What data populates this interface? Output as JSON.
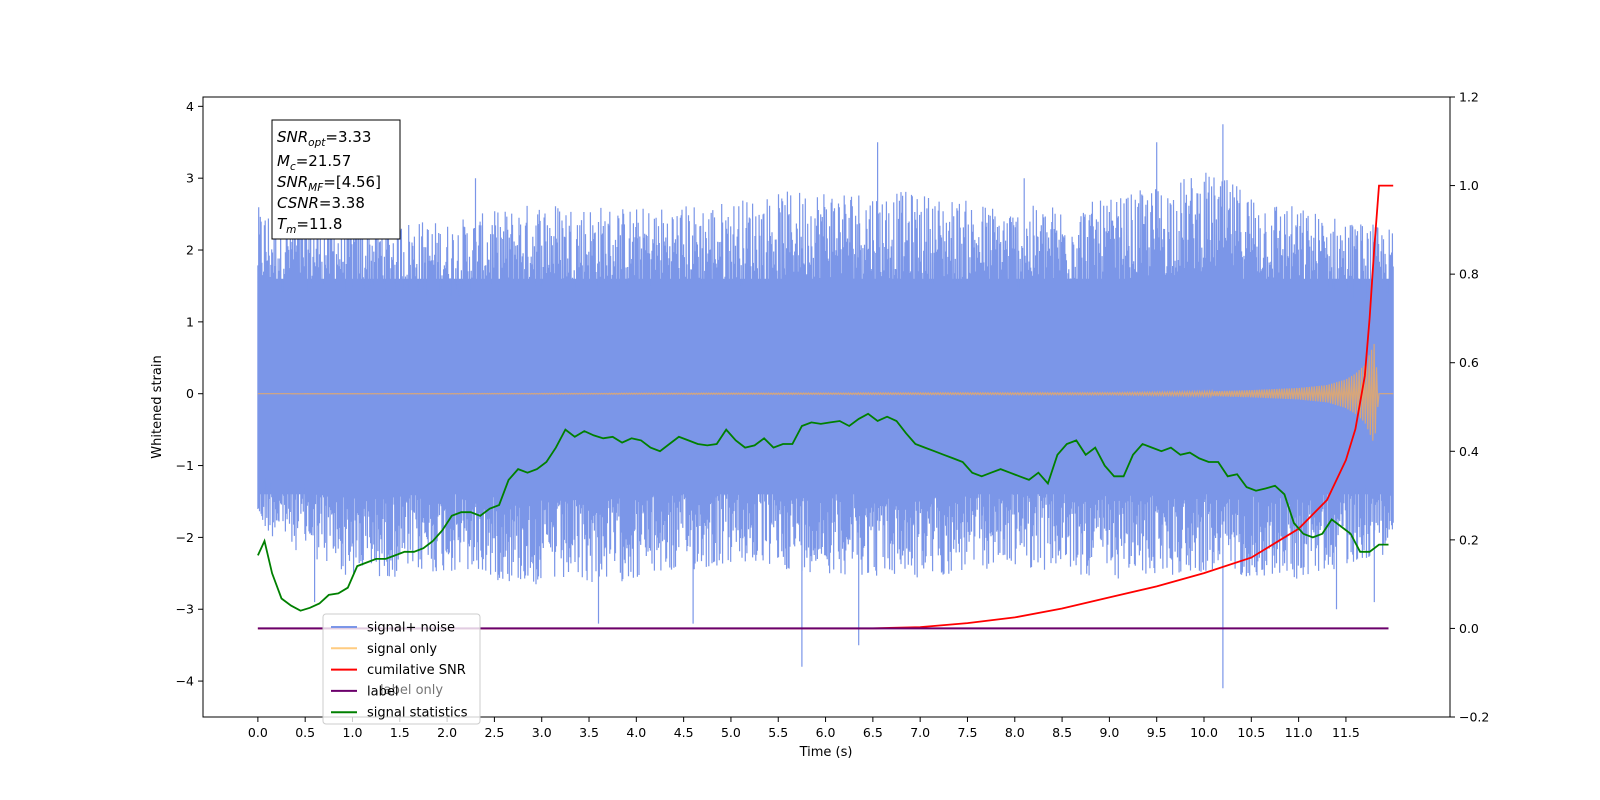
{
  "chart_data": {
    "type": "line",
    "xlabel": "Time (s)",
    "ylabel": "Whitened strain",
    "xlim": [
      -0.58,
      12.6
    ],
    "ylim": [
      -4.5,
      4.13
    ],
    "y2lim": [
      -0.2,
      1.2
    ],
    "x_ticks": [
      "0.0",
      "0.5",
      "1.0",
      "1.5",
      "2.0",
      "2.5",
      "3.0",
      "3.5",
      "4.0",
      "4.5",
      "5.0",
      "5.5",
      "6.0",
      "6.5",
      "7.0",
      "7.5",
      "8.0",
      "8.5",
      "9.0",
      "9.5",
      "10.0",
      "10.5",
      "11.0",
      "11.5"
    ],
    "y_ticks": [
      "4",
      "3",
      "2",
      "1",
      "0",
      "−1",
      "−2",
      "−3",
      "−4"
    ],
    "y2_ticks": [
      "1.2",
      "1.0",
      "0.8",
      "0.6",
      "0.4",
      "0.2",
      "0.0",
      "−0.2"
    ],
    "legend_position": "lower-left",
    "annotation": {
      "lines": [
        {
          "sym": "SNR",
          "sub": "opt",
          "value": "=3.33"
        },
        {
          "sym": "M",
          "sub": "c",
          "value": "=21.57"
        },
        {
          "sym": "SNR",
          "sub": "MF",
          "value": "=[4.56]"
        },
        {
          "sym": "CSNR",
          "sub": "",
          "value": "=3.38"
        },
        {
          "sym": "T",
          "sub": "m",
          "value": "=11.8"
        }
      ]
    },
    "series": [
      {
        "name": "signal+ noise",
        "axis": "left",
        "color": "#4169e1",
        "style": "dense noise band",
        "band_ranges_by_second": [
          [
            0,
            -1.9,
            2.6
          ],
          [
            1,
            -2.6,
            2.5
          ],
          [
            2,
            -2.5,
            2.4
          ],
          [
            3,
            -2.7,
            2.7
          ],
          [
            4,
            -2.6,
            2.6
          ],
          [
            5,
            -2.4,
            2.7
          ],
          [
            6,
            -2.5,
            2.9
          ],
          [
            7,
            -2.6,
            2.8
          ],
          [
            8,
            -2.4,
            2.6
          ],
          [
            9,
            -2.6,
            2.7
          ],
          [
            10,
            -2.5,
            3.1
          ],
          [
            11,
            -2.6,
            2.6
          ],
          [
            12,
            -2.2,
            2.3
          ]
        ],
        "spikes": [
          [
            0.6,
            -2.9
          ],
          [
            2.3,
            3.0
          ],
          [
            3.6,
            -3.2
          ],
          [
            4.6,
            -3.2
          ],
          [
            5.75,
            -3.8
          ],
          [
            6.35,
            -3.5
          ],
          [
            6.55,
            3.5
          ],
          [
            8.1,
            3.0
          ],
          [
            9.5,
            3.5
          ],
          [
            10.2,
            3.75
          ],
          [
            10.2,
            -4.1
          ],
          [
            11.4,
            -3.0
          ],
          [
            11.8,
            -2.9
          ]
        ]
      },
      {
        "name": "signal only",
        "axis": "left",
        "color": "#d8a679",
        "x": [
          0,
          9,
          10,
          10.5,
          11,
          11.3,
          11.5,
          11.6,
          11.7,
          11.75,
          11.8,
          11.85,
          12.0
        ],
        "envelope": [
          0.0,
          0.015,
          0.03,
          0.05,
          0.08,
          0.12,
          0.2,
          0.28,
          0.4,
          0.55,
          0.7,
          0.0,
          0.0
        ]
      },
      {
        "name": "cumilative SNR",
        "axis": "right",
        "color": "#ff0000",
        "x": [
          6.5,
          7.0,
          7.5,
          8.0,
          8.5,
          9.0,
          9.5,
          10.0,
          10.5,
          11.0,
          11.3,
          11.5,
          11.6,
          11.7,
          11.75,
          11.8,
          11.85,
          11.9,
          12.0
        ],
        "y": [
          0.0,
          0.003,
          0.012,
          0.025,
          0.045,
          0.07,
          0.095,
          0.125,
          0.16,
          0.225,
          0.29,
          0.38,
          0.45,
          0.57,
          0.7,
          0.86,
          1.0,
          1.0,
          1.0
        ]
      },
      {
        "name": "label",
        "axis": "right",
        "color": "#6b006b",
        "x": [
          0,
          11.95
        ],
        "y": [
          0.0,
          0.0
        ]
      },
      {
        "name": "signal statistics",
        "axis": "left",
        "color": "#008000",
        "x": [
          0.0,
          0.07,
          0.15,
          0.25,
          0.35,
          0.45,
          0.55,
          0.65,
          0.75,
          0.85,
          0.95,
          1.05,
          1.15,
          1.25,
          1.35,
          1.45,
          1.55,
          1.65,
          1.75,
          1.85,
          1.95,
          2.05,
          2.15,
          2.25,
          2.35,
          2.45,
          2.55,
          2.65,
          2.75,
          2.85,
          2.95,
          3.05,
          3.15,
          3.25,
          3.35,
          3.45,
          3.55,
          3.65,
          3.75,
          3.85,
          3.95,
          4.05,
          4.15,
          4.25,
          4.35,
          4.45,
          4.55,
          4.65,
          4.75,
          4.85,
          4.95,
          5.05,
          5.15,
          5.25,
          5.35,
          5.45,
          5.55,
          5.65,
          5.75,
          5.85,
          5.95,
          6.05,
          6.15,
          6.25,
          6.35,
          6.45,
          6.55,
          6.65,
          6.75,
          6.85,
          6.95,
          7.05,
          7.15,
          7.25,
          7.35,
          7.45,
          7.55,
          7.65,
          7.75,
          7.85,
          7.95,
          8.05,
          8.15,
          8.25,
          8.35,
          8.45,
          8.55,
          8.65,
          8.75,
          8.85,
          8.95,
          9.05,
          9.15,
          9.25,
          9.35,
          9.45,
          9.55,
          9.65,
          9.75,
          9.85,
          9.95,
          10.05,
          10.15,
          10.25,
          10.35,
          10.45,
          10.55,
          10.65,
          10.75,
          10.85,
          10.95,
          11.05,
          11.15,
          11.25,
          11.35,
          11.45,
          11.55,
          11.65,
          11.75,
          11.85,
          11.95
        ],
        "y": [
          -2.25,
          -2.05,
          -2.5,
          -2.85,
          -2.95,
          -3.02,
          -2.98,
          -2.92,
          -2.8,
          -2.78,
          -2.7,
          -2.4,
          -2.35,
          -2.3,
          -2.3,
          -2.25,
          -2.2,
          -2.2,
          -2.15,
          -2.05,
          -1.9,
          -1.7,
          -1.65,
          -1.65,
          -1.7,
          -1.6,
          -1.55,
          -1.2,
          -1.05,
          -1.1,
          -1.05,
          -0.95,
          -0.75,
          -0.5,
          -0.6,
          -0.52,
          -0.58,
          -0.62,
          -0.6,
          -0.68,
          -0.62,
          -0.65,
          -0.75,
          -0.8,
          -0.7,
          -0.6,
          -0.65,
          -0.7,
          -0.72,
          -0.7,
          -0.5,
          -0.65,
          -0.75,
          -0.72,
          -0.62,
          -0.75,
          -0.7,
          -0.7,
          -0.45,
          -0.4,
          -0.42,
          -0.4,
          -0.38,
          -0.45,
          -0.35,
          -0.28,
          -0.38,
          -0.32,
          -0.38,
          -0.55,
          -0.7,
          -0.75,
          -0.8,
          -0.85,
          -0.9,
          -0.95,
          -1.1,
          -1.15,
          -1.1,
          -1.05,
          -1.1,
          -1.15,
          -1.2,
          -1.1,
          -1.25,
          -0.85,
          -0.7,
          -0.65,
          -0.85,
          -0.75,
          -1.0,
          -1.15,
          -1.15,
          -0.85,
          -0.7,
          -0.75,
          -0.8,
          -0.75,
          -0.85,
          -0.82,
          -0.9,
          -0.95,
          -0.95,
          -1.15,
          -1.12,
          -1.3,
          -1.35,
          -1.32,
          -1.28,
          -1.4,
          -1.8,
          -1.95,
          -2.0,
          -1.95,
          -1.75,
          -1.85,
          -1.95,
          -2.2,
          -2.2,
          -2.1,
          -2.1
        ]
      }
    ]
  },
  "legend_items": [
    {
      "label": "signal+ noise",
      "color": "#7b96e8"
    },
    {
      "label": "signal only",
      "color": "#ffcc80"
    },
    {
      "label": "cumilative SNR",
      "color": "#ff0000"
    },
    {
      "label": "label",
      "color": "#6b006b"
    },
    {
      "label": "signal statistics",
      "color": "#008000"
    }
  ],
  "hidden_legend_labels": [
    "label only"
  ]
}
